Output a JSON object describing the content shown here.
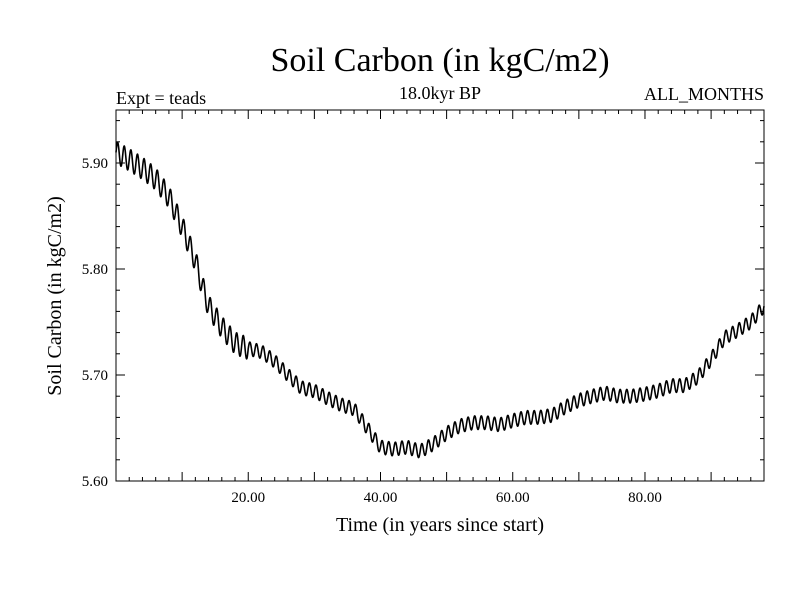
{
  "chart_data": {
    "type": "line",
    "title": "Soil Carbon (in kgC/m2)",
    "subtitle": "18.0kyr BP",
    "annotations": {
      "left": "Expt = teads",
      "right": "ALL_MONTHS"
    },
    "xlabel": "Time (in years since start)",
    "ylabel": "Soil Carbon (in kgC/m2)",
    "xlim": [
      0,
      98
    ],
    "ylim": [
      5.6,
      5.95
    ],
    "xticks": [
      20,
      40,
      60,
      80
    ],
    "xtick_labels": [
      "20.00",
      "40.00",
      "60.00",
      "80.00"
    ],
    "yticks": [
      5.6,
      5.7,
      5.8,
      5.9
    ],
    "ytick_labels": [
      "5.60",
      "5.70",
      "5.80",
      "5.90"
    ],
    "grid": false,
    "series_color": "#000000",
    "trend": {
      "x": [
        0,
        2,
        4,
        6,
        8,
        10,
        12,
        13,
        14,
        16,
        18,
        20,
        22,
        24,
        26,
        28,
        30,
        32,
        34,
        36,
        38,
        40,
        42,
        44,
        46,
        48,
        50,
        52,
        54,
        56,
        58,
        60,
        62,
        64,
        66,
        68,
        70,
        72,
        74,
        76,
        78,
        80,
        82,
        84,
        86,
        88,
        90,
        92,
        94,
        96,
        98
      ],
      "y": [
        5.91,
        5.903,
        5.895,
        5.885,
        5.868,
        5.84,
        5.808,
        5.785,
        5.765,
        5.745,
        5.73,
        5.725,
        5.722,
        5.713,
        5.7,
        5.688,
        5.685,
        5.678,
        5.672,
        5.668,
        5.65,
        5.632,
        5.63,
        5.632,
        5.628,
        5.635,
        5.645,
        5.652,
        5.655,
        5.655,
        5.653,
        5.657,
        5.66,
        5.66,
        5.662,
        5.67,
        5.676,
        5.68,
        5.683,
        5.68,
        5.68,
        5.682,
        5.685,
        5.69,
        5.69,
        5.698,
        5.715,
        5.735,
        5.742,
        5.75,
        5.765
      ]
    },
    "seasonal_amplitude": 0.008
  }
}
